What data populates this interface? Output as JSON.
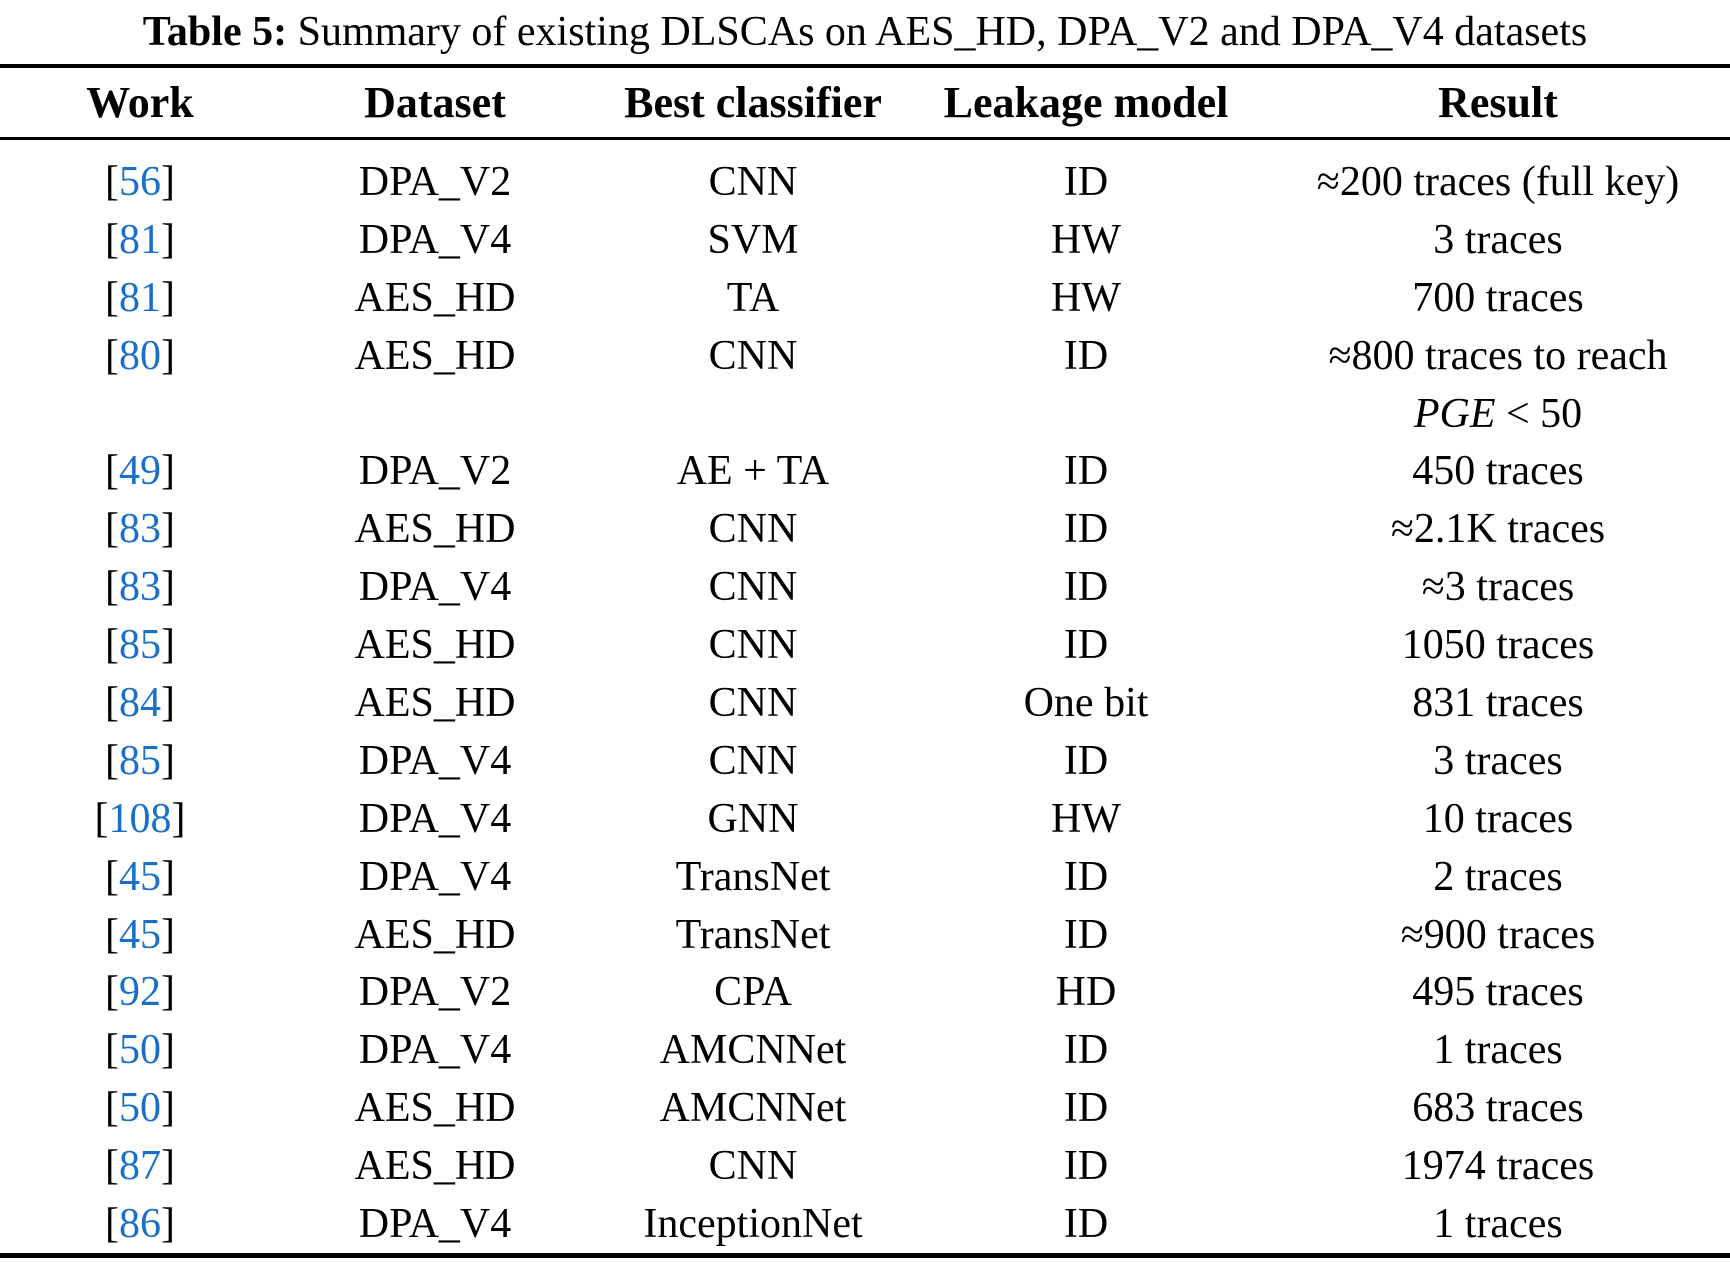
{
  "title": {
    "label": "Table 5:",
    "text": " Summary of existing DLSCAs on AES_HD, DPA_V2 and DPA_V4 datasets"
  },
  "table": {
    "headers": {
      "work": "Work",
      "dataset": "Dataset",
      "classifier": "Best classifier",
      "leakage": "Leakage model",
      "result": "Result"
    },
    "bracket_open": "[",
    "bracket_close": "]",
    "citation_color": "#1a6fc9",
    "text_color": "#000000",
    "rows": [
      {
        "ref": "56",
        "dataset": "DPA_V2",
        "classifier": "CNN",
        "leakage": "ID",
        "result": "≈200 traces (full key)"
      },
      {
        "ref": "81",
        "dataset": "DPA_V4",
        "classifier": "SVM",
        "leakage": "HW",
        "result": "3 traces"
      },
      {
        "ref": "81",
        "dataset": "AES_HD",
        "classifier": "TA",
        "leakage": "HW",
        "result": "700 traces"
      },
      {
        "ref": "80",
        "dataset": "AES_HD",
        "classifier": "CNN",
        "leakage": "ID",
        "result": "≈800 traces to reach",
        "result_line2_italic": "PGE",
        "result_line2_rest": " < 50"
      },
      {
        "ref": "49",
        "dataset": "DPA_V2",
        "classifier": "AE + TA",
        "leakage": "ID",
        "result": "450 traces"
      },
      {
        "ref": "83",
        "dataset": "AES_HD",
        "classifier": "CNN",
        "leakage": "ID",
        "result": "≈2.1K traces"
      },
      {
        "ref": "83",
        "dataset": "DPA_V4",
        "classifier": "CNN",
        "leakage": "ID",
        "result": "≈3 traces"
      },
      {
        "ref": "85",
        "dataset": "AES_HD",
        "classifier": "CNN",
        "leakage": "ID",
        "result": "1050 traces"
      },
      {
        "ref": "84",
        "dataset": "AES_HD",
        "classifier": "CNN",
        "leakage": "One bit",
        "result": "831 traces"
      },
      {
        "ref": "85",
        "dataset": "DPA_V4",
        "classifier": "CNN",
        "leakage": "ID",
        "result": "3 traces"
      },
      {
        "ref": "108",
        "dataset": "DPA_V4",
        "classifier": "GNN",
        "leakage": "HW",
        "result": "10 traces"
      },
      {
        "ref": "45",
        "dataset": "DPA_V4",
        "classifier": "TransNet",
        "leakage": "ID",
        "result": "2 traces"
      },
      {
        "ref": "45",
        "dataset": "AES_HD",
        "classifier": "TransNet",
        "leakage": "ID",
        "result": "≈900 traces"
      },
      {
        "ref": "92",
        "dataset": "DPA_V2",
        "classifier": "CPA",
        "leakage": "HD",
        "result": "495 traces"
      },
      {
        "ref": "50",
        "dataset": "DPA_V4",
        "classifier": "AMCNNet",
        "leakage": "ID",
        "result": "1 traces"
      },
      {
        "ref": "50",
        "dataset": "AES_HD",
        "classifier": "AMCNNet",
        "leakage": "ID",
        "result": "683 traces"
      },
      {
        "ref": "87",
        "dataset": "AES_HD",
        "classifier": "CNN",
        "leakage": "ID",
        "result": "1974 traces"
      },
      {
        "ref": "86",
        "dataset": "DPA_V4",
        "classifier": "InceptionNet",
        "leakage": "ID",
        "result": "1 traces"
      }
    ]
  }
}
